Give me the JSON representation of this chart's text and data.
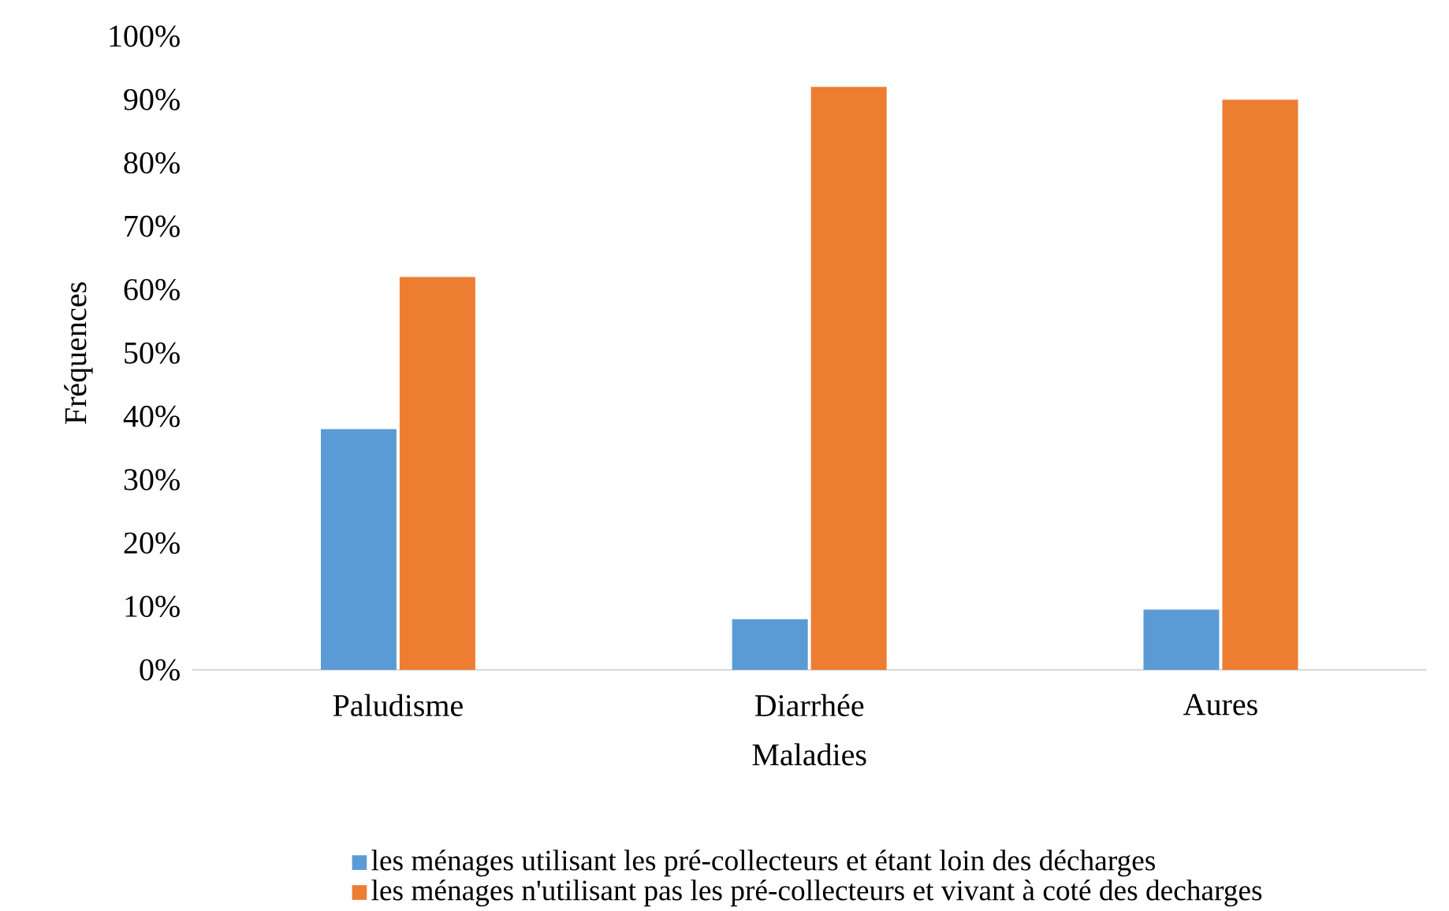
{
  "chart_data": {
    "type": "bar",
    "xlabel": "Maladies",
    "ylabel": "Fréquences",
    "categories": [
      "Paludisme",
      "Diarrhée",
      "Aures"
    ],
    "series": [
      {
        "name": "les ménages utilisant les pré-collecteurs et étant loin des décharges",
        "color": "#5b9bd5",
        "values": [
          38,
          8,
          9.5
        ]
      },
      {
        "name": "les ménages n'utilisant pas les pré-collecteurs et vivant à coté des decharges",
        "color": "#ed7d31",
        "values": [
          62,
          92,
          90
        ]
      }
    ],
    "ylim": [
      0,
      100
    ],
    "yticks": [
      {
        "value": 0,
        "label": "0%"
      },
      {
        "value": 10,
        "label": "10%"
      },
      {
        "value": 20,
        "label": "20%"
      },
      {
        "value": 30,
        "label": "30%"
      },
      {
        "value": 40,
        "label": "40%"
      },
      {
        "value": 50,
        "label": "50%"
      },
      {
        "value": 60,
        "label": "60%"
      },
      {
        "value": 70,
        "label": "70%"
      },
      {
        "value": 80,
        "label": "80%"
      },
      {
        "value": 90,
        "label": "90%"
      },
      {
        "value": 100,
        "label": "100%"
      }
    ],
    "legend": "bottom"
  }
}
